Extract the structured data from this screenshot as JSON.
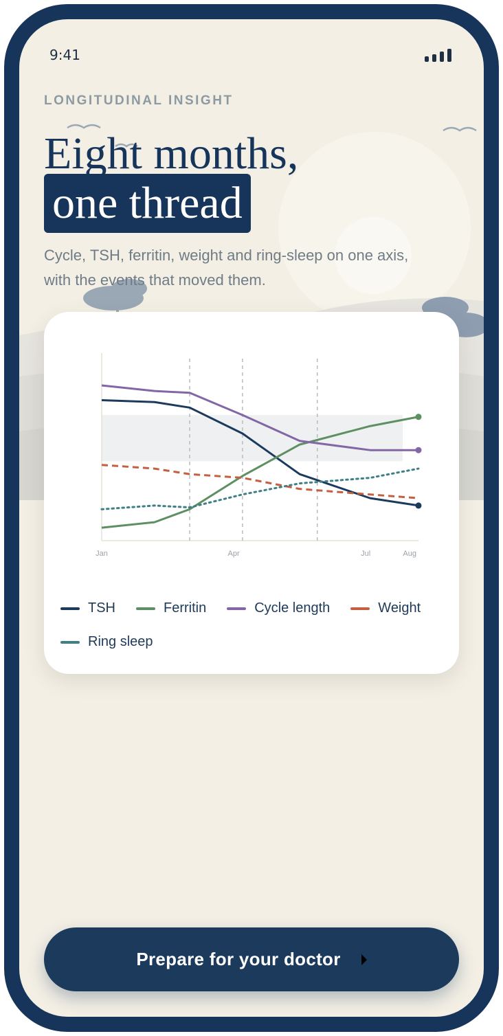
{
  "status_time": "9:41",
  "eyebrow": "LONGITUDINAL INSIGHT",
  "title_line1": "Eight months,",
  "title_highlight": "one thread",
  "subtitle": "Cycle, TSH, ferritin, weight and ring-sleep on one axis, with the events that moved them.",
  "chart_data": {
    "type": "line",
    "x": [
      1,
      2.2,
      3,
      4.2,
      5.5,
      7.1,
      8.2
    ],
    "xlim": [
      1,
      8.2
    ],
    "xticks": [
      {
        "value": 1,
        "label": "Jan"
      },
      {
        "value": 4,
        "label": "Apr"
      },
      {
        "value": 7,
        "label": "Jul"
      },
      {
        "value": 8,
        "label": "Aug"
      }
    ],
    "ylim": [
      0,
      100
    ],
    "event_lines": [
      3,
      4.2,
      5.9
    ],
    "reference_band": [
      43,
      68
    ],
    "series": [
      {
        "name": "TSH",
        "color": "#1b3a5c",
        "style": "solid",
        "end_marker": true,
        "values": [
          76,
          75,
          72,
          58,
          36,
          23,
          19
        ]
      },
      {
        "name": "Ferritin",
        "color": "#5e8f62",
        "style": "solid",
        "end_marker": true,
        "values": [
          7,
          10,
          17,
          35,
          52,
          62,
          67
        ]
      },
      {
        "name": "Cycle length",
        "color": "#8266a6",
        "style": "solid",
        "end_marker": true,
        "values": [
          84,
          81,
          80,
          68,
          54,
          49,
          49
        ]
      },
      {
        "name": "Weight",
        "color": "#c4603f",
        "style": "dashed",
        "end_marker": false,
        "values": [
          41,
          39,
          36,
          34,
          28,
          25,
          23
        ]
      },
      {
        "name": "Ring sleep",
        "color": "#3f7f86",
        "style": "dotted",
        "end_marker": false,
        "values": [
          17,
          19,
          18,
          25,
          31,
          34,
          39
        ]
      }
    ]
  },
  "cta": "Prepare for your doctor"
}
